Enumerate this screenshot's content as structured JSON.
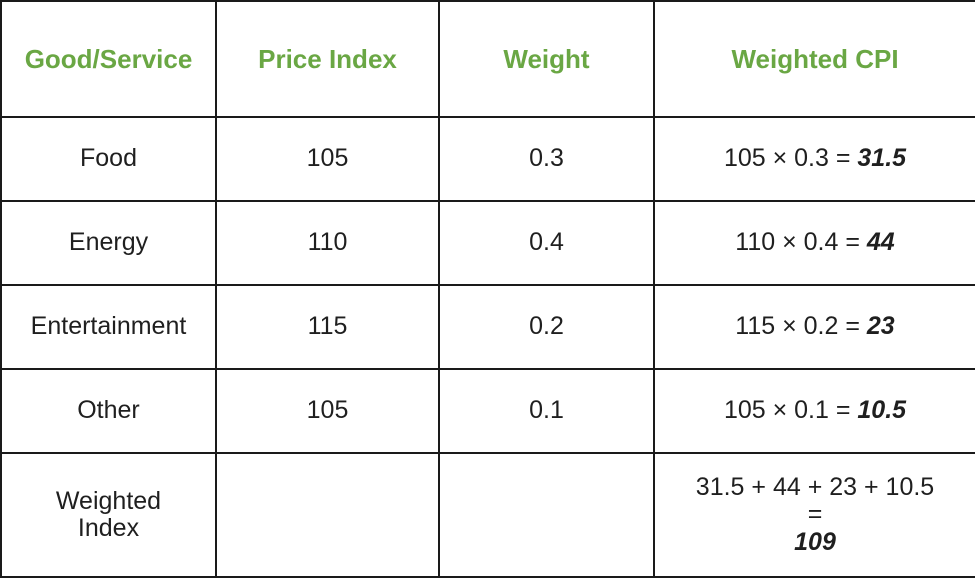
{
  "headers": {
    "good": "Good/Service",
    "price_index": "Price Index",
    "weight": "Weight",
    "weighted_cpi": "Weighted CPI"
  },
  "rows": [
    {
      "good": "Food",
      "price_index": "105",
      "weight": "0.3",
      "formula": "105 × 0.3 = ",
      "result": "31.5"
    },
    {
      "good": "Energy",
      "price_index": "110",
      "weight": "0.4",
      "formula": "110 × 0.4 = ",
      "result": "44"
    },
    {
      "good": "Entertainment",
      "price_index": "115",
      "weight": "0.2",
      "formula": "115 × 0.2 = ",
      "result": "23"
    },
    {
      "good": "Other",
      "price_index": "105",
      "weight": "0.1",
      "formula": "105 × 0.1 = ",
      "result": "10.5"
    }
  ],
  "total": {
    "label_line1": "Weighted",
    "label_line2": "Index",
    "sum_line": "31.5 + 44 + 23 + 10.5",
    "equals": "= ",
    "result": "109"
  },
  "colors": {
    "header_text": "#6aa744",
    "border": "#1a1a1a"
  }
}
